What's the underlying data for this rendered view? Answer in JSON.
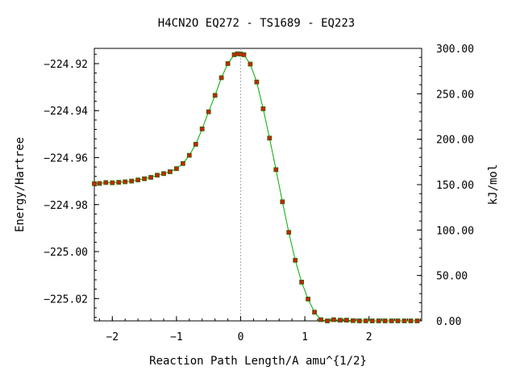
{
  "chart_data": {
    "type": "line",
    "title": "H4CN2O   EQ272 - TS1689 - EQ223",
    "xlabel": "Reaction Path Length/A amu^{1/2}",
    "ylabel": "Energy/Hartree",
    "y2label": "kJ/mol",
    "xlim": [
      -2.28,
      2.82
    ],
    "ylim": [
      -225.0295,
      -224.9135
    ],
    "y2lim": [
      0.0,
      300.0
    ],
    "x_ticks": [
      -2,
      -1,
      0,
      1,
      2
    ],
    "x_tick_labels": [
      "−2",
      "−1",
      "0",
      "1",
      "2"
    ],
    "y_ticks": [
      -224.92,
      -224.94,
      -224.96,
      -224.98,
      -225.0,
      -225.02
    ],
    "y_tick_labels": [
      "−224.92",
      "−224.94",
      "−224.96",
      "−224.98",
      "−225.00",
      "−225.02"
    ],
    "y2_ticks": [
      300,
      250,
      200,
      150,
      100,
      50,
      0
    ],
    "y2_tick_labels": [
      "300.00",
      "250.00",
      "200.00",
      "150.00",
      "100.00",
      "50.00",
      "0.00"
    ],
    "ts_marker_x": 0.0,
    "line_color": "#00aa00",
    "marker_color": "#cc2200",
    "grid": false,
    "series": [
      {
        "x": [
          -2.28,
          -2.2,
          -2.1,
          -2.0,
          -1.9,
          -1.8,
          -1.7,
          -1.6,
          -1.5,
          -1.4,
          -1.3,
          -1.2,
          -1.1,
          -1.0,
          -0.9,
          -0.8,
          -0.7,
          -0.6,
          -0.5,
          -0.4,
          -0.3,
          -0.2,
          -0.1,
          -0.05,
          0.0,
          0.05,
          0.15,
          0.25,
          0.35,
          0.45,
          0.55,
          0.65,
          0.75,
          0.85,
          0.95,
          1.05,
          1.15,
          1.25,
          1.35,
          1.45,
          1.55,
          1.65,
          1.75,
          1.85,
          1.95,
          2.05,
          2.15,
          2.25,
          2.35,
          2.45,
          2.55,
          2.65,
          2.75
        ],
        "y": [
          -224.9711,
          -224.971,
          -224.9706,
          -224.9707,
          -224.9705,
          -224.9703,
          -224.97,
          -224.9695,
          -224.969,
          -224.9684,
          -224.9675,
          -224.9668,
          -224.966,
          -224.9647,
          -224.9625,
          -224.959,
          -224.9543,
          -224.9478,
          -224.9405,
          -224.9335,
          -224.926,
          -224.92,
          -224.9162,
          -224.9158,
          -224.9159,
          -224.9162,
          -224.9202,
          -224.9278,
          -224.9392,
          -224.9517,
          -224.9651,
          -224.9788,
          -224.9918,
          -225.0037,
          -225.013,
          -225.0202,
          -225.0258,
          -225.029,
          -225.0295,
          -225.029,
          -225.0292,
          -225.0292,
          -225.0294,
          -225.0295,
          -225.0295,
          -225.0295,
          -225.0295,
          -225.0295,
          -225.0295,
          -225.0295,
          -225.0295,
          -225.0295,
          -225.0295
        ]
      }
    ]
  }
}
